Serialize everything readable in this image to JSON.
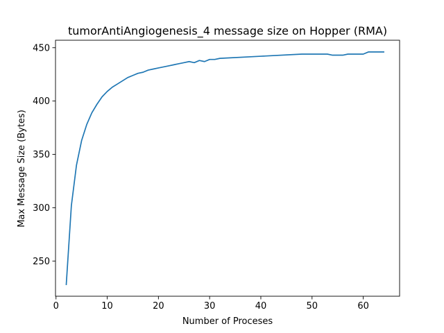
{
  "chart_data": {
    "type": "line",
    "title": "tumorAntiAngiogenesis_4 message size on Hopper (RMA)",
    "xlabel": "Number of Proceses",
    "ylabel": "Max Message Size (Bytes)",
    "xlim": [
      -0.1,
      67.1
    ],
    "ylim": [
      217,
      457
    ],
    "xticks": [
      0,
      10,
      20,
      30,
      40,
      50,
      60
    ],
    "yticks": [
      250,
      300,
      350,
      400,
      450
    ],
    "grid": false,
    "series": [
      {
        "color": "#1f77b4",
        "x": [
          2,
          3,
          4,
          5,
          6,
          7,
          8,
          9,
          10,
          11,
          12,
          13,
          14,
          15,
          16,
          17,
          18,
          19,
          20,
          21,
          22,
          23,
          24,
          25,
          26,
          27,
          28,
          29,
          30,
          31,
          32,
          40,
          48,
          49,
          50,
          51,
          52,
          53,
          54,
          55,
          56,
          57,
          58,
          59,
          60,
          61,
          62,
          63,
          64
        ],
        "y": [
          228,
          302,
          340,
          363,
          378,
          389,
          397,
          404,
          409,
          413,
          416,
          419,
          422,
          424,
          426,
          427,
          429,
          430,
          431,
          432,
          433,
          434,
          435,
          436,
          437,
          436,
          438,
          437,
          439,
          439,
          440,
          442,
          444,
          444,
          444,
          444,
          444,
          444,
          443,
          443,
          443,
          444,
          444,
          444,
          444,
          446,
          446,
          446,
          446
        ]
      }
    ]
  }
}
